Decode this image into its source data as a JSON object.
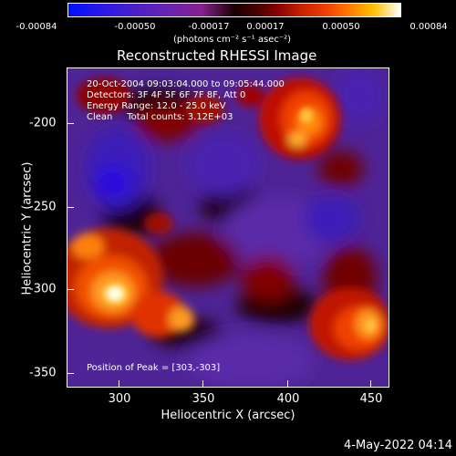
{
  "colorbar": {
    "tick_labels": [
      "-0.00084",
      "-0.00050",
      "-0.00017",
      "0.00017",
      "0.00050",
      "0.00084"
    ],
    "units": "(photons cm⁻² s⁻¹ asec⁻²)"
  },
  "plot": {
    "title": "Reconstructed RHESSI Image",
    "info": {
      "time_range": "20-Oct-2004 09:03:04.000 to 09:05:44.000",
      "detectors": "Detectors: 3F 4F 5F 6F 7F 8F, Att 0",
      "energy_range": "Energy Range: 12.0 - 25.0 keV",
      "method_counts": "Clean     Total counts: 3.12E+03"
    },
    "peak_position": "Position of Peak = [303,-303]",
    "x_axis": {
      "title": "Heliocentric X (arcsec)",
      "ticks": [
        "300",
        "350",
        "400",
        "450"
      ]
    },
    "y_axis": {
      "title": "Heliocentric Y (arcsec)",
      "ticks": [
        "-200",
        "-250",
        "-300",
        "-350"
      ]
    }
  },
  "footer": {
    "timestamp": "4-May-2022 04:14"
  },
  "colors": {
    "background": "#000000",
    "foreground": "#ffffff",
    "negative": "#5a2aa8",
    "deep_negative": "#2a18e8",
    "dark_red": "#6a0000",
    "bright_orange": "#ff8a10",
    "peak_white": "#ffffe0"
  }
}
